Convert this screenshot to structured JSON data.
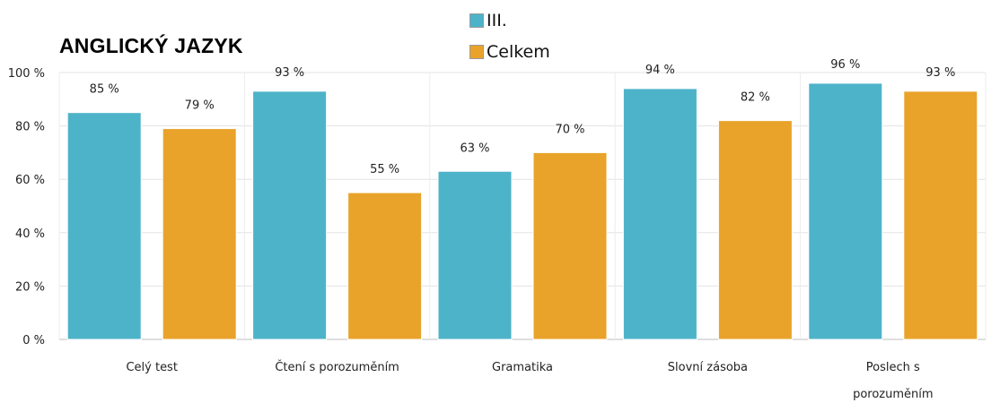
{
  "chart_data": {
    "type": "bar",
    "title": "ANGLICKÝ JAZYK",
    "categories": [
      [
        "Celý test"
      ],
      [
        "Čtení s porozuměním"
      ],
      [
        "Gramatika"
      ],
      [
        "Slovní zásoba"
      ],
      [
        "Poslech s",
        "porozuměním"
      ]
    ],
    "series": [
      {
        "name": "III.",
        "color": "#4db3c8",
        "values": [
          85,
          93,
          63,
          94,
          96
        ],
        "labels": [
          "85 %",
          "93 %",
          "63 %",
          "94 %",
          "96 %"
        ]
      },
      {
        "name": "Celkem",
        "color": "#e9a32a",
        "values": [
          79,
          55,
          70,
          82,
          93
        ],
        "labels": [
          "79 %",
          "55 %",
          "70 %",
          "82 %",
          "93 %"
        ]
      }
    ],
    "ylim": [
      0,
      100
    ],
    "yticks": [
      "0 %",
      "20 %",
      "40 %",
      "60 %",
      "80 %",
      "100 %"
    ],
    "ytick_values": [
      0,
      20,
      40,
      60,
      80,
      100
    ],
    "grid": true,
    "legend_position": "top-center"
  }
}
